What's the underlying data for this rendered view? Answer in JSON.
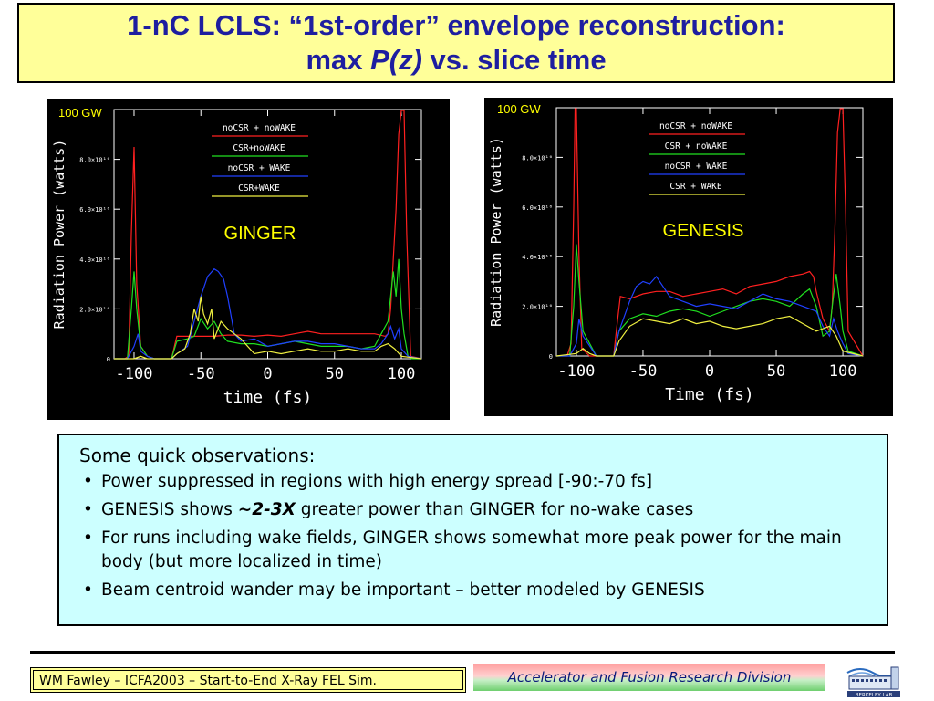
{
  "title": {
    "line1": "1-nC LCLS: “1st-order” envelope reconstruction:",
    "line2_pre": "max ",
    "line2_em": "P(z)",
    "line2_post": " vs. slice time"
  },
  "colors": {
    "red": "#ff2020",
    "green": "#20e020",
    "blue": "#2040ff",
    "yellow": "#f0f040",
    "annotation": "#ffff00",
    "title_text": "#1e1ea0"
  },
  "chart_data": [
    {
      "type": "line",
      "code_label": "GINGER",
      "xlabel": "time (fs)",
      "ylabel": "Radiation Power (watts)",
      "xlim": [
        -115,
        115
      ],
      "ylim": [
        0,
        100000000000.0
      ],
      "xticks": [
        -100,
        -50,
        0,
        50,
        100
      ],
      "yticks": [
        0,
        20000000000.0,
        40000000000.0,
        60000000000.0,
        80000000000.0
      ],
      "ytick_labels": [
        "0",
        "2.0×10¹⁰",
        "4.0×10¹⁰",
        "6.0×10¹⁰",
        "8.0×10¹⁰"
      ],
      "annotation": "100 GW",
      "legend": [
        "noCSR + noWAKE",
        "CSR+noWAKE",
        "noCSR + WAKE",
        "CSR+WAKE"
      ],
      "series": [
        {
          "name": "noCSR + noWAKE",
          "color": "red",
          "x": [
            -115,
            -107,
            -104,
            -102,
            -100,
            -98,
            -95,
            -90,
            -85,
            -80,
            -72,
            -68,
            -60,
            -50,
            -40,
            -30,
            -20,
            -10,
            0,
            10,
            20,
            30,
            40,
            50,
            60,
            70,
            80,
            88,
            90,
            92,
            94,
            96,
            98,
            100,
            102,
            104,
            107,
            115
          ],
          "y": [
            0,
            0,
            1000000000.0,
            50000000000.0,
            85000000000.0,
            30000000000.0,
            5000000000.0,
            1000000000.0,
            0,
            0,
            0,
            9000000000.0,
            9000000000.0,
            9000000000.0,
            9000000000.0,
            9500000000.0,
            9500000000.0,
            9000000000.0,
            9500000000.0,
            9000000000.0,
            10000000000.0,
            11000000000.0,
            10000000000.0,
            10000000000.0,
            10000000000.0,
            10000000000.0,
            10000000000.0,
            9000000000.0,
            10000000000.0,
            20000000000.0,
            40000000000.0,
            60000000000.0,
            90000000000.0,
            100000000000.0,
            100000000000.0,
            50000000000.0,
            1000000000.0,
            0
          ]
        },
        {
          "name": "CSR+noWAKE",
          "color": "green",
          "x": [
            -115,
            -105,
            -102,
            -100,
            -98,
            -95,
            -90,
            -85,
            -80,
            -72,
            -68,
            -60,
            -55,
            -50,
            -45,
            -40,
            -35,
            -30,
            -20,
            -10,
            0,
            10,
            20,
            30,
            40,
            50,
            60,
            70,
            80,
            85,
            90,
            92,
            94,
            96,
            98,
            100,
            102,
            105,
            108,
            115
          ],
          "y": [
            0,
            0,
            20000000000.0,
            35000000000.0,
            20000000000.0,
            5000000000.0,
            1000000000.0,
            0,
            0,
            0,
            7000000000.0,
            8000000000.0,
            9000000000.0,
            16000000000.0,
            12000000000.0,
            15000000000.0,
            10000000000.0,
            7000000000.0,
            6000000000.0,
            6000000000.0,
            5000000000.0,
            6000000000.0,
            7000000000.0,
            6000000000.0,
            5000000000.0,
            5000000000.0,
            5000000000.0,
            4000000000.0,
            5000000000.0,
            10000000000.0,
            15000000000.0,
            25000000000.0,
            35000000000.0,
            25000000000.0,
            40000000000.0,
            20000000000.0,
            10000000000.0,
            1000000000.0,
            0,
            0
          ]
        },
        {
          "name": "noCSR + WAKE",
          "color": "blue",
          "x": [
            -115,
            -105,
            -100,
            -97,
            -95,
            -90,
            -85,
            -80,
            -72,
            -68,
            -60,
            -55,
            -50,
            -45,
            -40,
            -37,
            -33,
            -30,
            -25,
            -20,
            -10,
            0,
            10,
            20,
            30,
            40,
            50,
            60,
            70,
            80,
            85,
            90,
            92,
            95,
            98,
            100,
            105,
            115
          ],
          "y": [
            0,
            0,
            5000000000.0,
            10000000000.0,
            3000000000.0,
            1000000000.0,
            0,
            0,
            0,
            2000000000.0,
            5000000000.0,
            15000000000.0,
            25000000000.0,
            33000000000.0,
            36000000000.0,
            35000000000.0,
            32000000000.0,
            25000000000.0,
            10000000000.0,
            7000000000.0,
            8000000000.0,
            5000000000.0,
            6000000000.0,
            7000000000.0,
            7000000000.0,
            6000000000.0,
            6000000000.0,
            5000000000.0,
            4000000000.0,
            4000000000.0,
            6000000000.0,
            10000000000.0,
            13000000000.0,
            8000000000.0,
            12000000000.0,
            4000000000.0,
            1000000000.0,
            0
          ]
        },
        {
          "name": "CSR+WAKE",
          "color": "yellow",
          "x": [
            -115,
            -100,
            -95,
            -90,
            -85,
            -80,
            -72,
            -68,
            -62,
            -58,
            -55,
            -52,
            -50,
            -48,
            -45,
            -42,
            -40,
            -35,
            -30,
            -25,
            -20,
            -10,
            0,
            10,
            20,
            30,
            40,
            50,
            60,
            70,
            80,
            85,
            90,
            95,
            100,
            115
          ],
          "y": [
            0,
            0,
            1000000000.0,
            0,
            0,
            0,
            0,
            2000000000.0,
            4000000000.0,
            10000000000.0,
            20000000000.0,
            15000000000.0,
            25000000000.0,
            18000000000.0,
            14000000000.0,
            20000000000.0,
            8000000000.0,
            15000000000.0,
            12000000000.0,
            10000000000.0,
            8000000000.0,
            2000000000.0,
            3000000000.0,
            2000000000.0,
            3000000000.0,
            4000000000.0,
            3000000000.0,
            3000000000.0,
            4000000000.0,
            3000000000.0,
            3000000000.0,
            5000000000.0,
            6000000000.0,
            4000000000.0,
            1000000000.0,
            0
          ]
        }
      ]
    },
    {
      "type": "line",
      "code_label": "GENESIS",
      "xlabel": "Time (fs)",
      "ylabel": "Radiation Power (watts)",
      "xlim": [
        -115,
        115
      ],
      "ylim": [
        0,
        100000000000.0
      ],
      "xticks": [
        -100,
        -50,
        0,
        50,
        100
      ],
      "yticks": [
        0,
        20000000000.0,
        40000000000.0,
        60000000000.0,
        80000000000.0
      ],
      "ytick_labels": [
        "0",
        "2.0×10¹⁰",
        "4.0×10¹⁰",
        "6.0×10¹⁰",
        "8.0×10¹⁰"
      ],
      "annotation": "100 GW",
      "legend": [
        "noCSR + noWAKE",
        "CSR + noWAKE",
        "noCSR + WAKE",
        "CSR + WAKE"
      ],
      "series": [
        {
          "name": "noCSR + noWAKE",
          "color": "red",
          "x": [
            -115,
            -107,
            -104,
            -102,
            -101,
            -100,
            -98,
            -96,
            -90,
            -80,
            -72,
            -70,
            -67,
            -60,
            -50,
            -40,
            -30,
            -20,
            -10,
            0,
            10,
            20,
            30,
            40,
            50,
            60,
            70,
            75,
            78,
            80,
            85,
            90,
            92,
            94,
            96,
            98,
            100,
            102,
            104,
            115
          ],
          "y": [
            0,
            0,
            5000000000.0,
            60000000000.0,
            100000000000.0,
            100000000000.0,
            40000000000.0,
            3000000000.0,
            0,
            0,
            0,
            10000000000.0,
            24000000000.0,
            23000000000.0,
            25000000000.0,
            26000000000.0,
            26000000000.0,
            24000000000.0,
            25000000000.0,
            26000000000.0,
            27000000000.0,
            25000000000.0,
            28000000000.0,
            29000000000.0,
            30000000000.0,
            32000000000.0,
            33000000000.0,
            34000000000.0,
            32000000000.0,
            26000000000.0,
            15000000000.0,
            10000000000.0,
            20000000000.0,
            50000000000.0,
            90000000000.0,
            100000000000.0,
            100000000000.0,
            60000000000.0,
            10000000000.0,
            0
          ]
        },
        {
          "name": "CSR + noWAKE",
          "color": "green",
          "x": [
            -115,
            -105,
            -102,
            -100,
            -98,
            -95,
            -90,
            -85,
            -72,
            -68,
            -60,
            -50,
            -40,
            -30,
            -20,
            -10,
            0,
            10,
            20,
            30,
            40,
            50,
            60,
            70,
            75,
            80,
            85,
            90,
            92,
            95,
            98,
            100,
            104,
            115
          ],
          "y": [
            0,
            0,
            20000000000.0,
            45000000000.0,
            30000000000.0,
            10000000000.0,
            5000000000.0,
            0,
            0,
            10000000000.0,
            15000000000.0,
            17000000000.0,
            16000000000.0,
            18000000000.0,
            19000000000.0,
            18000000000.0,
            16000000000.0,
            18000000000.0,
            20000000000.0,
            22000000000.0,
            23000000000.0,
            22000000000.0,
            20000000000.0,
            25000000000.0,
            27000000000.0,
            20000000000.0,
            8000000000.0,
            10000000000.0,
            20000000000.0,
            33000000000.0,
            20000000000.0,
            10000000000.0,
            2000000000.0,
            0
          ]
        },
        {
          "name": "noCSR + WAKE",
          "color": "blue",
          "x": [
            -115,
            -105,
            -100,
            -98,
            -95,
            -90,
            -85,
            -72,
            -68,
            -60,
            -55,
            -50,
            -45,
            -40,
            -35,
            -30,
            -20,
            -10,
            0,
            10,
            20,
            30,
            40,
            50,
            60,
            70,
            80,
            85,
            90,
            93,
            96,
            100,
            104,
            115
          ],
          "y": [
            0,
            0,
            5000000000.0,
            15000000000.0,
            8000000000.0,
            4000000000.0,
            0,
            0,
            10000000000.0,
            22000000000.0,
            28000000000.0,
            30000000000.0,
            29000000000.0,
            32000000000.0,
            28000000000.0,
            24000000000.0,
            22000000000.0,
            20000000000.0,
            21000000000.0,
            20000000000.0,
            19000000000.0,
            22000000000.0,
            25000000000.0,
            23000000000.0,
            22000000000.0,
            20000000000.0,
            18000000000.0,
            12000000000.0,
            8000000000.0,
            15000000000.0,
            10000000000.0,
            5000000000.0,
            1000000000.0,
            0
          ]
        },
        {
          "name": "CSR + WAKE",
          "color": "yellow",
          "x": [
            -115,
            -100,
            -95,
            -90,
            -85,
            -72,
            -68,
            -60,
            -50,
            -40,
            -30,
            -20,
            -10,
            0,
            10,
            20,
            30,
            40,
            50,
            60,
            70,
            80,
            85,
            90,
            95,
            100,
            115
          ],
          "y": [
            0,
            1000000000.0,
            3000000000.0,
            1000000000.0,
            0,
            0,
            6000000000.0,
            12000000000.0,
            15000000000.0,
            14000000000.0,
            13000000000.0,
            15000000000.0,
            13000000000.0,
            14000000000.0,
            12000000000.0,
            11000000000.0,
            12000000000.0,
            13000000000.0,
            15000000000.0,
            16000000000.0,
            13000000000.0,
            10000000000.0,
            11000000000.0,
            12000000000.0,
            8000000000.0,
            2000000000.0,
            0
          ]
        }
      ]
    }
  ],
  "observations": {
    "heading": "Some quick observations:",
    "items": [
      {
        "pre": "Power suppressed in regions with high energy spread [-90:-70 fs]",
        "em": "",
        "post": ""
      },
      {
        "pre": "GENESIS shows ",
        "em": "~2-3X",
        "post": " greater power than GINGER for no-wake cases"
      },
      {
        "pre": "For runs including wake fields, GINGER shows somewhat more peak power for the main body (but more localized in time)",
        "em": "",
        "post": ""
      },
      {
        "pre": "Beam centroid wander may be important – better modeled by GENESIS",
        "em": "",
        "post": ""
      }
    ]
  },
  "footer": {
    "left": "WM Fawley – ICFA2003 – Start-to-End X-Ray FEL Sim.",
    "right": "Accelerator and Fusion Research Division",
    "logo_text": "BERKELEY LAB"
  }
}
